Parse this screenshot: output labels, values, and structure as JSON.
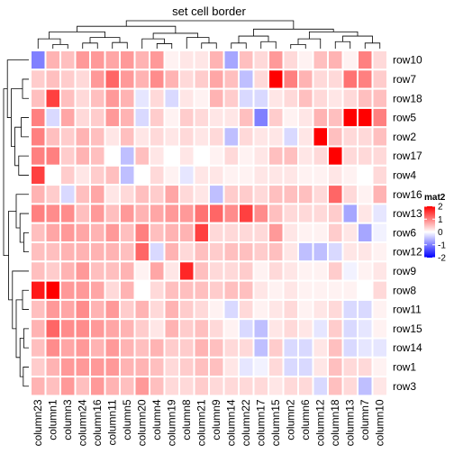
{
  "chart_data": {
    "type": "heatmap",
    "title": "set cell border",
    "rows": [
      "row10",
      "row7",
      "row18",
      "row5",
      "row2",
      "row17",
      "row4",
      "row16",
      "row13",
      "row6",
      "row12",
      "row9",
      "row8",
      "row11",
      "row15",
      "row14",
      "row1",
      "row3"
    ],
    "columns": [
      "column23",
      "column1",
      "column3",
      "column24",
      "column16",
      "column11",
      "column5",
      "column20",
      "column4",
      "column19",
      "column8",
      "column21",
      "column9",
      "column14",
      "column22",
      "column17",
      "column15",
      "column2",
      "column6",
      "column12",
      "column18",
      "column13",
      "column7",
      "column10"
    ],
    "values": [
      [
        -1.0,
        0.6,
        0.5,
        0.8,
        0.8,
        0.7,
        0.8,
        0.6,
        0.8,
        0.1,
        0.2,
        0.2,
        0.6,
        -0.7,
        0.5,
        0.3,
        0.8,
        0.3,
        0.1,
        0.5,
        0.6,
        0.1,
        1.0,
        0.3
      ],
      [
        0.4,
        0.5,
        0.4,
        0.3,
        0.8,
        1.2,
        0.8,
        0.6,
        0.9,
        0.6,
        0.3,
        0.4,
        0.7,
        0.5,
        -0.5,
        0.3,
        2.0,
        1.0,
        0.6,
        0.3,
        0.3,
        1.1,
        1.0,
        0.4
      ],
      [
        0.5,
        1.5,
        0.5,
        0.3,
        0.5,
        0.8,
        0.6,
        -0.2,
        0.3,
        -0.3,
        0.2,
        0.1,
        0.6,
        0.4,
        -0.3,
        -0.3,
        0.2,
        0.3,
        0.5,
        0.3,
        0.2,
        0.3,
        0.5,
        0.5
      ],
      [
        1.0,
        -0.3,
        0.7,
        0.3,
        0.4,
        0.8,
        0.6,
        -0.3,
        0.4,
        0.1,
        0.4,
        0.3,
        0.2,
        0.2,
        0.5,
        -1.0,
        0.4,
        0.1,
        0.2,
        0.6,
        0.5,
        2.3,
        2.3,
        1.0
      ],
      [
        1.0,
        0.5,
        0.4,
        0.6,
        0.5,
        0.2,
        0.5,
        0.2,
        0.3,
        0.2,
        0.3,
        0.2,
        0.3,
        -0.5,
        0.3,
        0.2,
        0.2,
        -0.3,
        0.2,
        2.3,
        0.5,
        0.3,
        0.3,
        0.5
      ],
      [
        1.0,
        1.0,
        0.4,
        0.6,
        0.5,
        0.0,
        -0.5,
        0.5,
        0.2,
        0.0,
        0.2,
        0.0,
        0.1,
        0.3,
        0.1,
        0.2,
        0.5,
        0.5,
        0.2,
        0.3,
        2.3,
        0.3,
        0.3,
        0.3
      ],
      [
        1.5,
        0.0,
        0.4,
        0.2,
        0.4,
        0.5,
        -0.5,
        0.0,
        0.3,
        0.1,
        -0.2,
        0.2,
        0.2,
        0.1,
        0.1,
        0.2,
        0.2,
        0.2,
        0.1,
        0.1,
        0.2,
        0.1,
        0.0,
        0.3
      ],
      [
        0.6,
        0.4,
        -0.3,
        0.5,
        0.7,
        0.2,
        0.3,
        0.5,
        0.4,
        0.7,
        0.3,
        0.2,
        -0.5,
        0.4,
        0.4,
        0.3,
        0.5,
        0.5,
        0.5,
        0.3,
        1.2,
        0.3,
        0.1,
        0.6
      ],
      [
        1.0,
        0.9,
        0.9,
        0.5,
        0.8,
        0.5,
        0.8,
        0.6,
        0.7,
        0.8,
        0.8,
        1.1,
        1.2,
        0.9,
        1.5,
        0.9,
        0.5,
        0.3,
        0.3,
        0.3,
        0.4,
        -0.7,
        0.2,
        -0.2
      ],
      [
        0.5,
        0.7,
        0.8,
        0.7,
        0.6,
        0.8,
        0.5,
        1.0,
        0.5,
        0.6,
        0.6,
        1.5,
        0.3,
        0.3,
        0.3,
        0.3,
        0.8,
        0.2,
        0.1,
        0.1,
        0.4,
        0.2,
        -0.7,
        -0.1
      ],
      [
        0.5,
        0.5,
        0.6,
        0.6,
        0.6,
        0.6,
        0.5,
        1.2,
        -0.3,
        0.6,
        0.3,
        0.5,
        0.4,
        0.5,
        0.5,
        0.4,
        0.5,
        0.2,
        -0.5,
        -0.5,
        -0.3,
        0.2,
        0.2,
        0.1
      ],
      [
        0.5,
        0.4,
        0.6,
        0.8,
        0.5,
        0.5,
        0.6,
        0.1,
        0.7,
        0.2,
        1.7,
        0.5,
        0.3,
        0.3,
        0.4,
        0.1,
        0.3,
        0.2,
        0.1,
        0.1,
        0.4,
        -0.1,
        0.1,
        0.2
      ],
      [
        1.8,
        2.2,
        0.8,
        0.8,
        0.7,
        0.3,
        0.6,
        0.0,
        0.3,
        0.5,
        0.5,
        0.5,
        0.4,
        0.5,
        0.5,
        0.2,
        0.1,
        0.2,
        0.1,
        0.1,
        0.1,
        0.1,
        0.0,
        0.3
      ],
      [
        0.5,
        0.8,
        0.7,
        0.9,
        0.6,
        0.8,
        0.4,
        0.6,
        0.3,
        0.6,
        0.4,
        0.3,
        0.1,
        -0.3,
        0.3,
        0.1,
        0.2,
        0.3,
        0.1,
        0.2,
        0.3,
        -0.3,
        -0.3,
        0.1
      ],
      [
        0.6,
        1.2,
        0.9,
        0.9,
        0.8,
        0.7,
        0.6,
        0.4,
        0.2,
        0.6,
        0.4,
        0.5,
        0.3,
        0.1,
        -0.3,
        -0.5,
        0.2,
        0.3,
        0.2,
        -0.2,
        0.4,
        -0.3,
        -0.2,
        0.1
      ],
      [
        0.5,
        0.9,
        0.7,
        0.8,
        0.6,
        0.8,
        0.6,
        0.5,
        0.6,
        0.4,
        0.4,
        0.6,
        0.5,
        0.3,
        0.3,
        -0.5,
        0.4,
        -0.3,
        -0.3,
        0.2,
        0.5,
        -0.3,
        -0.2,
        -0.2
      ],
      [
        0.4,
        0.6,
        0.8,
        0.8,
        0.8,
        0.8,
        0.6,
        0.6,
        0.5,
        0.3,
        0.4,
        0.5,
        0.5,
        0.2,
        -0.2,
        -0.1,
        0.3,
        -0.3,
        -0.3,
        0.2,
        0.5,
        0.3,
        0.3,
        0.1
      ],
      [
        0.6,
        0.5,
        0.8,
        0.5,
        0.8,
        0.6,
        0.5,
        0.8,
        0.5,
        0.3,
        0.3,
        0.4,
        0.3,
        0.3,
        0.3,
        0.3,
        0.2,
        0.3,
        0.3,
        -0.3,
        0.5,
        0.3,
        -0.5,
        0.2
      ]
    ],
    "legend": {
      "title": "mat2",
      "ticks": [
        2,
        1,
        0,
        -1,
        -2
      ],
      "range": [
        -2,
        2
      ],
      "placement": "right"
    },
    "colors": {
      "low": "#0000ff",
      "mid": "#ffffff",
      "high": "#ff0000",
      "border": "#ffffff"
    },
    "dendrograms": [
      "top",
      "left"
    ]
  }
}
